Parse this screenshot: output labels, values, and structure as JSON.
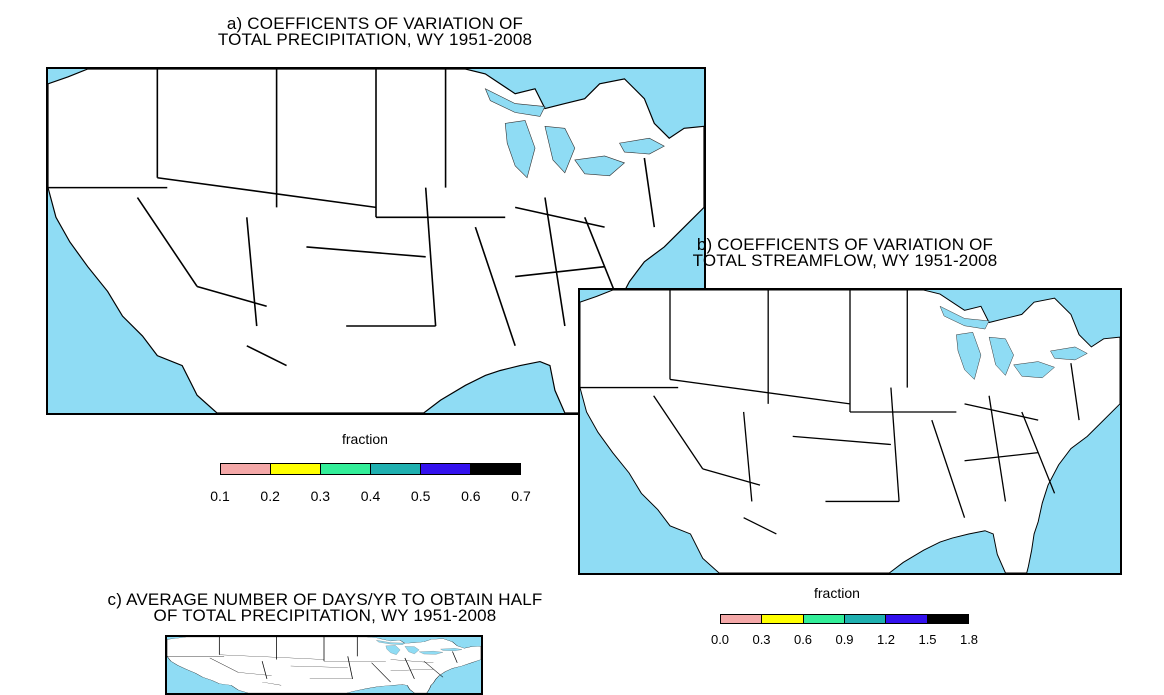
{
  "panel_a": {
    "title_line1": "a) COEFFICENTS OF VARIATION OF",
    "title_line2": "TOTAL PRECIPITATION, WY 1951-2008",
    "legend_label": "fraction",
    "legend_ticks": [
      "0.1",
      "0.2",
      "0.3",
      "0.4",
      "0.5",
      "0.6",
      "0.7"
    ],
    "legend_colors": [
      "#f4a8a8",
      "#ffff00",
      "#33ee99",
      "#1fb0b0",
      "#3311ee",
      "#000000"
    ]
  },
  "panel_b": {
    "title_line1": "b) COEFFICENTS OF VARIATION OF",
    "title_line2": "TOTAL STREAMFLOW, WY 1951-2008",
    "legend_label": "fraction",
    "legend_ticks": [
      "0.0",
      "0.3",
      "0.6",
      "0.9",
      "1.2",
      "1.5",
      "1.8"
    ],
    "legend_colors": [
      "#f4a8a8",
      "#ffff00",
      "#33ee99",
      "#1fb0b0",
      "#3311ee",
      "#000000"
    ]
  },
  "panel_c": {
    "title_line1": "c) AVERAGE NUMBER OF DAYS/YR TO OBTAIN HALF",
    "title_line2": "OF TOTAL PRECIPITATION, WY 1951-2008"
  },
  "colors": {
    "ocean": "#8fdcf4",
    "land": "#ffffff",
    "orange_marker": "#ff8c00"
  }
}
